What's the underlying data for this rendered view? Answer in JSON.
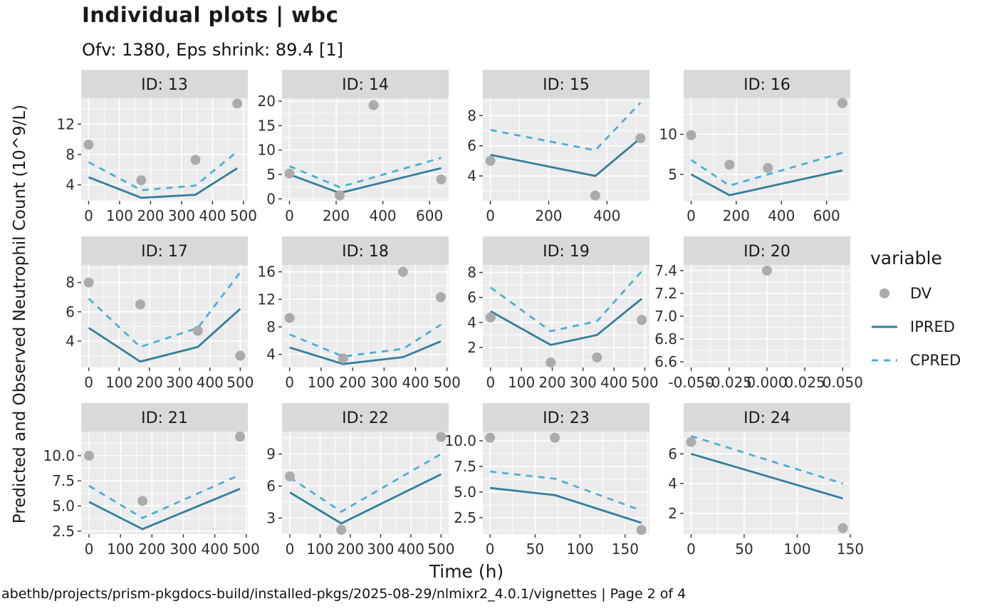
{
  "chart_data": {
    "type": "line",
    "faceted": true,
    "title": "Individual plots | wbc",
    "subtitle": "Ofv: 1380, Eps shrink: 89.4 [1]",
    "xlabel": "Time (h)",
    "ylabel": "Predicted and Observed Neutrophil Count (10^9/L)",
    "caption": "abethb/projects/prism-pkgdocs-build/installed-pkgs/2025-08-29/nlmixr2_4.0.1/vignettes | Page 2 of 4",
    "legend": {
      "title": "variable",
      "entries": [
        {
          "label": "DV",
          "glyph": "point"
        },
        {
          "label": "IPRED",
          "glyph": "solid-line"
        },
        {
          "label": "CPRED",
          "glyph": "dashed-line"
        }
      ],
      "position": "right"
    },
    "colors": {
      "dv": "#ABABAB",
      "ipred": "#31809E",
      "cpred": "#46B1D9",
      "panel_bg": "#EBEBEB",
      "strip_bg": "#D9D9D9",
      "grid": "#FFFFFF",
      "tick": "#333333"
    },
    "grid_on": true,
    "facets": [
      {
        "label": "ID: 13",
        "xlim": [
          -24,
          514
        ],
        "xticks": [
          0,
          100,
          200,
          300,
          400,
          500
        ],
        "xtick_labels": [
          "0",
          "100",
          "200",
          "300",
          "400",
          "500"
        ],
        "ylim": [
          1.9,
          15.4
        ],
        "yticks": [
          4,
          8,
          12
        ],
        "ytick_labels": [
          "4",
          "8",
          "12"
        ],
        "dv": [
          [
            0,
            9.3
          ],
          [
            170,
            4.6
          ],
          [
            345,
            7.3
          ],
          [
            480,
            14.7
          ]
        ],
        "ipred": [
          [
            0,
            5.0
          ],
          [
            170,
            2.3
          ],
          [
            345,
            2.7
          ],
          [
            480,
            6.2
          ]
        ],
        "cpred": [
          [
            0,
            7.0
          ],
          [
            170,
            3.3
          ],
          [
            345,
            3.9
          ],
          [
            480,
            8.4
          ]
        ]
      },
      {
        "label": "ID: 14",
        "xlim": [
          -32,
          682
        ],
        "xticks": [
          0,
          200,
          400,
          600
        ],
        "xtick_labels": [
          "0",
          "200",
          "400",
          "600"
        ],
        "ylim": [
          -0.4,
          20.6
        ],
        "yticks": [
          0,
          5,
          10,
          15,
          20
        ],
        "ytick_labels": [
          "0",
          "5",
          "10",
          "15",
          "20"
        ],
        "dv": [
          [
            0,
            5.2
          ],
          [
            215,
            0.7
          ],
          [
            360,
            19.2
          ],
          [
            650,
            4.0
          ]
        ],
        "ipred": [
          [
            0,
            5.0
          ],
          [
            215,
            1.2
          ],
          [
            650,
            6.3
          ]
        ],
        "cpred": [
          [
            0,
            6.7
          ],
          [
            215,
            2.4
          ],
          [
            650,
            8.4
          ]
        ]
      },
      {
        "label": "ID: 15",
        "xlim": [
          -26,
          546
        ],
        "xticks": [
          0,
          200,
          400
        ],
        "xtick_labels": [
          "0",
          "200",
          "400"
        ],
        "ylim": [
          2.35,
          9.15
        ],
        "yticks": [
          4,
          6,
          8
        ],
        "ytick_labels": [
          "4",
          "6",
          "8"
        ],
        "dv": [
          [
            0,
            5.0
          ],
          [
            360,
            2.7
          ],
          [
            515,
            6.5
          ]
        ],
        "ipred": [
          [
            0,
            5.4
          ],
          [
            360,
            4.0
          ],
          [
            515,
            6.5
          ]
        ],
        "cpred": [
          [
            0,
            7.05
          ],
          [
            360,
            5.7
          ],
          [
            515,
            8.85
          ]
        ]
      },
      {
        "label": "ID: 16",
        "xlim": [
          -33,
          705
        ],
        "xticks": [
          0,
          200,
          400,
          600
        ],
        "xtick_labels": [
          "0",
          "200",
          "400",
          "600"
        ],
        "ylim": [
          1.7,
          14.5
        ],
        "yticks": [
          5,
          10
        ],
        "ytick_labels": [
          "5",
          "10"
        ],
        "dv": [
          [
            0,
            9.9
          ],
          [
            170,
            6.2
          ],
          [
            340,
            5.8
          ],
          [
            670,
            13.9
          ]
        ],
        "ipred": [
          [
            0,
            5.0
          ],
          [
            170,
            2.4
          ],
          [
            670,
            5.5
          ]
        ],
        "cpred": [
          [
            0,
            6.8
          ],
          [
            170,
            3.6
          ],
          [
            670,
            7.7
          ]
        ]
      },
      {
        "label": "ID: 17",
        "xlim": [
          -25,
          525
        ],
        "xticks": [
          0,
          100,
          200,
          300,
          400,
          500
        ],
        "xtick_labels": [
          "0",
          "100",
          "200",
          "300",
          "400",
          "500"
        ],
        "ylim": [
          2.2,
          9.2
        ],
        "yticks": [
          4,
          6,
          8
        ],
        "ytick_labels": [
          "4",
          "6",
          "8"
        ],
        "dv": [
          [
            0,
            8.0
          ],
          [
            170,
            6.5
          ],
          [
            360,
            4.7
          ],
          [
            500,
            3.0
          ]
        ],
        "ipred": [
          [
            0,
            4.9
          ],
          [
            170,
            2.6
          ],
          [
            360,
            3.6
          ],
          [
            500,
            6.2
          ]
        ],
        "cpred": [
          [
            0,
            6.9
          ],
          [
            170,
            3.6
          ],
          [
            360,
            4.9
          ],
          [
            500,
            8.7
          ]
        ]
      },
      {
        "label": "ID: 18",
        "xlim": [
          -24,
          505
        ],
        "xticks": [
          0,
          100,
          200,
          300,
          400,
          500
        ],
        "xtick_labels": [
          "0",
          "100",
          "200",
          "300",
          "400",
          "500"
        ],
        "ylim": [
          2.1,
          17.0
        ],
        "yticks": [
          4,
          8,
          12,
          16
        ],
        "ytick_labels": [
          "4",
          "8",
          "12",
          "16"
        ],
        "dv": [
          [
            0,
            9.3
          ],
          [
            170,
            3.4
          ],
          [
            360,
            16.0
          ],
          [
            480,
            12.3
          ]
        ],
        "ipred": [
          [
            0,
            5.0
          ],
          [
            170,
            2.6
          ],
          [
            360,
            3.6
          ],
          [
            480,
            5.9
          ]
        ],
        "cpred": [
          [
            0,
            6.9
          ],
          [
            170,
            3.7
          ],
          [
            360,
            4.8
          ],
          [
            480,
            8.3
          ]
        ]
      },
      {
        "label": "ID: 19",
        "xlim": [
          -25,
          515
        ],
        "xticks": [
          0,
          100,
          200,
          300,
          400,
          500
        ],
        "xtick_labels": [
          "0",
          "100",
          "200",
          "300",
          "400",
          "500"
        ],
        "ylim": [
          0.4,
          8.6
        ],
        "yticks": [
          2,
          4,
          6,
          8
        ],
        "ytick_labels": [
          "2",
          "4",
          "6",
          "8"
        ],
        "dv": [
          [
            0,
            4.4
          ],
          [
            195,
            0.8
          ],
          [
            345,
            1.2
          ],
          [
            490,
            4.2
          ]
        ],
        "ipred": [
          [
            0,
            4.9
          ],
          [
            195,
            2.2
          ],
          [
            345,
            3.0
          ],
          [
            490,
            5.9
          ]
        ],
        "cpred": [
          [
            0,
            6.8
          ],
          [
            195,
            3.3
          ],
          [
            345,
            4.1
          ],
          [
            490,
            8.1
          ]
        ]
      },
      {
        "label": "ID: 20",
        "xlim": [
          -0.055,
          0.055
        ],
        "xticks": [
          -0.05,
          -0.025,
          0,
          0.025,
          0.05
        ],
        "xtick_labels": [
          "-0.050",
          "-0.025",
          "0.000",
          "0.025",
          "0.050"
        ],
        "ylim": [
          6.55,
          7.45
        ],
        "yticks": [
          6.6,
          6.8,
          7.0,
          7.2,
          7.4
        ],
        "ytick_labels": [
          "6.6",
          "6.8",
          "7.0",
          "7.2",
          "7.4"
        ],
        "dv": [
          [
            0,
            7.4
          ]
        ],
        "ipred": [],
        "cpred": []
      },
      {
        "label": "ID: 21",
        "xlim": [
          -25,
          505
        ],
        "xticks": [
          0,
          100,
          200,
          300,
          400,
          500
        ],
        "xtick_labels": [
          "0",
          "100",
          "200",
          "300",
          "400",
          "500"
        ],
        "ylim": [
          2.2,
          12.4
        ],
        "yticks": [
          2.5,
          5.0,
          7.5,
          10.0
        ],
        "ytick_labels": [
          "2.5",
          "5.0",
          "7.5",
          "10.0"
        ],
        "dv": [
          [
            0,
            10.0
          ],
          [
            170,
            5.5
          ],
          [
            480,
            11.9
          ]
        ],
        "ipred": [
          [
            0,
            5.4
          ],
          [
            170,
            2.7
          ],
          [
            480,
            6.7
          ]
        ],
        "cpred": [
          [
            0,
            7.0
          ],
          [
            170,
            3.8
          ],
          [
            480,
            8.1
          ]
        ]
      },
      {
        "label": "ID: 22",
        "xlim": [
          -26,
          525
        ],
        "xticks": [
          0,
          100,
          200,
          300,
          400,
          500
        ],
        "xtick_labels": [
          "0",
          "100",
          "200",
          "300",
          "400",
          "500"
        ],
        "ylim": [
          1.5,
          11.1
        ],
        "yticks": [
          3,
          6,
          9
        ],
        "ytick_labels": [
          "3",
          "6",
          "9"
        ],
        "dv": [
          [
            0,
            6.9
          ],
          [
            170,
            1.9
          ],
          [
            500,
            10.6
          ]
        ],
        "ipred": [
          [
            0,
            5.4
          ],
          [
            170,
            2.5
          ],
          [
            500,
            7.1
          ]
        ],
        "cpred": [
          [
            0,
            6.8
          ],
          [
            170,
            3.6
          ],
          [
            500,
            9.0
          ]
        ]
      },
      {
        "label": "ID: 23",
        "xlim": [
          -8,
          177
        ],
        "xticks": [
          0,
          50,
          100,
          150
        ],
        "xtick_labels": [
          "0",
          "50",
          "100",
          "150"
        ],
        "ylim": [
          0.9,
          10.9
        ],
        "yticks": [
          2.5,
          5.0,
          7.5,
          10.0
        ],
        "ytick_labels": [
          "2.5",
          "5.0",
          "7.5",
          "10.0"
        ],
        "dv": [
          [
            0,
            10.3
          ],
          [
            72,
            10.3
          ],
          [
            168,
            1.3
          ]
        ],
        "ipred": [
          [
            0,
            5.4
          ],
          [
            72,
            4.7
          ],
          [
            168,
            2.0
          ]
        ],
        "cpred": [
          [
            0,
            7.0
          ],
          [
            72,
            6.3
          ],
          [
            168,
            3.2
          ]
        ]
      },
      {
        "label": "ID: 24",
        "xlim": [
          -7,
          150
        ],
        "xticks": [
          0,
          50,
          100,
          150
        ],
        "xtick_labels": [
          "0",
          "50",
          "100",
          "150"
        ],
        "ylim": [
          0.6,
          7.5
        ],
        "yticks": [
          2,
          4,
          6
        ],
        "ytick_labels": [
          "2",
          "4",
          "6"
        ],
        "dv": [
          [
            0,
            6.8
          ],
          [
            143,
            1.0
          ]
        ],
        "ipred": [
          [
            0,
            6.0
          ],
          [
            143,
            3.0
          ]
        ],
        "cpred": [
          [
            0,
            7.2
          ],
          [
            143,
            4.0
          ]
        ]
      }
    ]
  }
}
